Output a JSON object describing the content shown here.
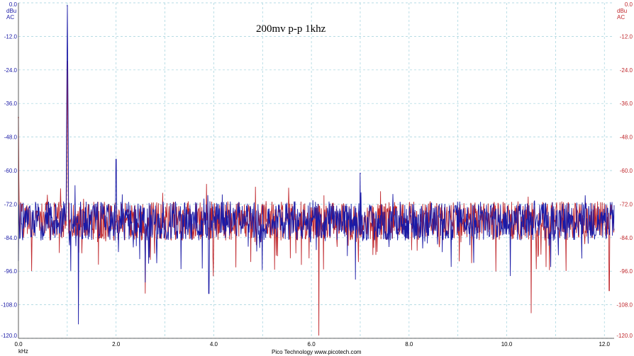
{
  "chart_data": {
    "type": "line",
    "title": "200mv  p-p  1khz",
    "footer": "Pico Technology   www.picotech.com",
    "xlabel": "kHz",
    "xlim": [
      0,
      12.2
    ],
    "ylim": [
      -120,
      0
    ],
    "grid": true,
    "x_ticks": [
      "0.0",
      "2.0",
      "4.0",
      "6.0",
      "8.0",
      "10.0",
      "12.0"
    ],
    "x_tick_values": [
      0,
      2,
      4,
      6,
      8,
      10,
      12
    ],
    "y_ticks": [
      "0.0",
      "-12.0",
      "-24.0",
      "-36.0",
      "-48.0",
      "-60.0",
      "-72.0",
      "-84.0",
      "-96.0",
      "-108.0",
      "-120.0"
    ],
    "y_tick_values": [
      0,
      -12,
      -24,
      -36,
      -48,
      -60,
      -72,
      -84,
      -96,
      -108,
      -120
    ],
    "left_axis": {
      "unit": "dBu",
      "coupling": "AC",
      "color": "#1a1aa6"
    },
    "right_axis": {
      "unit": "dBu",
      "coupling": "AC",
      "color": "#c0282d"
    },
    "series": [
      {
        "color": "#1a1aa6",
        "noise_floor": -78,
        "peaks": [
          {
            "x": 1.0,
            "y": -1
          },
          {
            "x": 2.0,
            "y": -56
          },
          {
            "x": 7.0,
            "y": -61
          }
        ],
        "dips": [
          {
            "x": 1.23,
            "y": -115
          },
          {
            "x": 2.6,
            "y": -100
          },
          {
            "x": 3.9,
            "y": -104
          },
          {
            "x": 6.9,
            "y": -99
          }
        ]
      },
      {
        "color": "#c0282d",
        "noise_floor": -78,
        "peaks": [
          {
            "x": 0.0,
            "y": -41
          },
          {
            "x": 1.0,
            "y": -21
          }
        ],
        "dips": [
          {
            "x": 6.15,
            "y": -119
          },
          {
            "x": 10.5,
            "y": -111
          },
          {
            "x": 2.6,
            "y": -104
          },
          {
            "x": 12.1,
            "y": -103
          }
        ]
      }
    ]
  }
}
